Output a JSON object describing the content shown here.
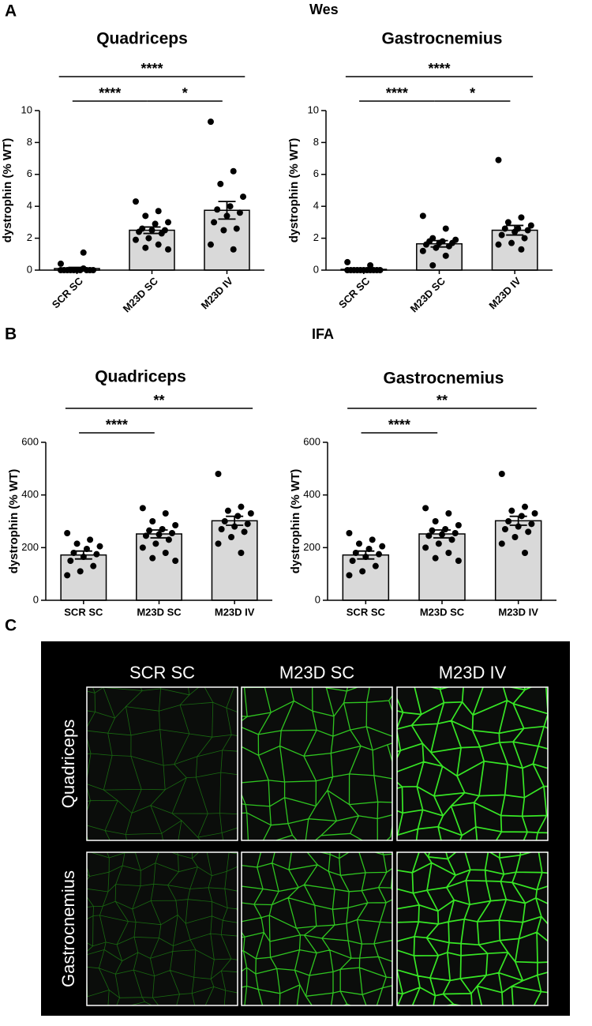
{
  "panels": {
    "a": "A",
    "b": "B",
    "c": "C"
  },
  "sections": {
    "wes": "Wes",
    "ifa": "IFA"
  },
  "chart_data": [
    {
      "type": "bar",
      "title": "Quadriceps",
      "ylabel": "dystrophin (% WT)",
      "categories": [
        "SCR SC",
        "M23D SC",
        "M23D IV"
      ],
      "values": [
        0.1,
        2.5,
        3.75
      ],
      "errors": [
        0.07,
        0.2,
        0.55
      ],
      "points": [
        [
          0.4,
          0.1,
          0,
          0,
          0,
          0,
          0,
          0,
          0,
          0,
          0,
          0,
          1.1
        ],
        [
          4.3,
          3.7,
          3.4,
          3.0,
          2.9,
          2.6,
          2.5,
          2.5,
          2.4,
          2.3,
          2.0,
          1.9,
          1.6,
          1.4,
          1.3
        ],
        [
          9.3,
          6.2,
          5.4,
          4.6,
          4.0,
          3.8,
          3.6,
          3.4,
          3.0,
          2.6,
          2.5,
          1.6,
          1.3
        ]
      ],
      "ylim": [
        0,
        10
      ],
      "yticks": [
        0,
        2,
        4,
        6,
        8,
        10
      ],
      "color": "#d9d9d9",
      "xtick_rotation": 45,
      "annotations": [
        {
          "label": "****",
          "between": [
            "SCR SC",
            "M23D IV"
          ]
        },
        {
          "label": "****",
          "between": [
            "SCR SC",
            "M23D SC"
          ]
        },
        {
          "label": "*",
          "between": [
            "M23D SC",
            "M23D IV"
          ]
        }
      ]
    },
    {
      "type": "bar",
      "title": "Gastrocnemius",
      "ylabel": "dystrophin (% WT)",
      "categories": [
        "SCR SC",
        "M23D SC",
        "M23D IV"
      ],
      "values": [
        0.05,
        1.65,
        2.5
      ],
      "errors": [
        0.04,
        0.2,
        0.3
      ],
      "points": [
        [
          0.5,
          0.3,
          0,
          0,
          0,
          0,
          0,
          0,
          0,
          0,
          0,
          0,
          0
        ],
        [
          3.4,
          2.6,
          2.0,
          1.9,
          1.8,
          1.8,
          1.7,
          1.7,
          1.6,
          1.5,
          1.4,
          1.2,
          0.9,
          0.3
        ],
        [
          6.9,
          3.3,
          3.0,
          2.8,
          2.6,
          2.6,
          2.5,
          2.4,
          2.2,
          2.0,
          1.7,
          1.6,
          1.3
        ]
      ],
      "ylim": [
        0,
        10
      ],
      "yticks": [
        0,
        2,
        4,
        6,
        8,
        10
      ],
      "color": "#d9d9d9",
      "xtick_rotation": 45,
      "annotations": [
        {
          "label": "****",
          "between": [
            "SCR SC",
            "M23D IV"
          ]
        },
        {
          "label": "****",
          "between": [
            "SCR SC",
            "M23D SC"
          ]
        },
        {
          "label": "*",
          "between": [
            "M23D SC",
            "M23D IV"
          ]
        }
      ]
    },
    {
      "type": "bar",
      "title": "Quadriceps",
      "ylabel": "dystrophin (% WT)",
      "categories": [
        "SCR SC",
        "M23D SC",
        "M23D IV"
      ],
      "values": [
        172,
        252,
        302
      ],
      "errors": [
        15,
        15,
        17
      ],
      "points": [
        [
          255,
          230,
          215,
          205,
          195,
          180,
          175,
          165,
          150,
          130,
          110,
          95
        ],
        [
          350,
          330,
          300,
          285,
          270,
          265,
          255,
          250,
          245,
          230,
          215,
          200,
          180,
          160,
          150
        ],
        [
          480,
          355,
          340,
          330,
          320,
          300,
          290,
          280,
          270,
          260,
          240,
          215,
          180
        ]
      ],
      "ylim": [
        0,
        600
      ],
      "yticks": [
        0,
        200,
        400,
        600
      ],
      "color": "#d9d9d9",
      "xtick_rotation": 0,
      "annotations": [
        {
          "label": "**",
          "between": [
            "SCR SC",
            "M23D IV"
          ]
        },
        {
          "label": "****",
          "between": [
            "SCR SC",
            "M23D SC"
          ]
        }
      ]
    },
    {
      "type": "bar",
      "title": "Gastrocnemius",
      "ylabel": "dystrophin (% WT)",
      "categories": [
        "SCR SC",
        "M23D SC",
        "M23D IV"
      ],
      "values": [
        172,
        252,
        302
      ],
      "errors": [
        15,
        15,
        17
      ],
      "points": [
        [
          255,
          230,
          215,
          205,
          195,
          180,
          175,
          165,
          150,
          130,
          110,
          95
        ],
        [
          350,
          330,
          300,
          285,
          270,
          265,
          255,
          250,
          245,
          230,
          215,
          200,
          180,
          160,
          150
        ],
        [
          480,
          355,
          340,
          330,
          320,
          300,
          290,
          280,
          270,
          260,
          240,
          215,
          180
        ]
      ],
      "ylim": [
        0,
        600
      ],
      "yticks": [
        0,
        200,
        400,
        600
      ],
      "color": "#d9d9d9",
      "xtick_rotation": 0,
      "annotations": [
        {
          "label": "**",
          "between": [
            "SCR SC",
            "M23D IV"
          ]
        },
        {
          "label": "****",
          "between": [
            "SCR SC",
            "M23D SC"
          ]
        }
      ]
    }
  ],
  "micrographs": {
    "columns": [
      "SCR SC",
      "M23D SC",
      "M23D IV"
    ],
    "rows": [
      "Quadriceps",
      "Gastrocnemius"
    ]
  }
}
